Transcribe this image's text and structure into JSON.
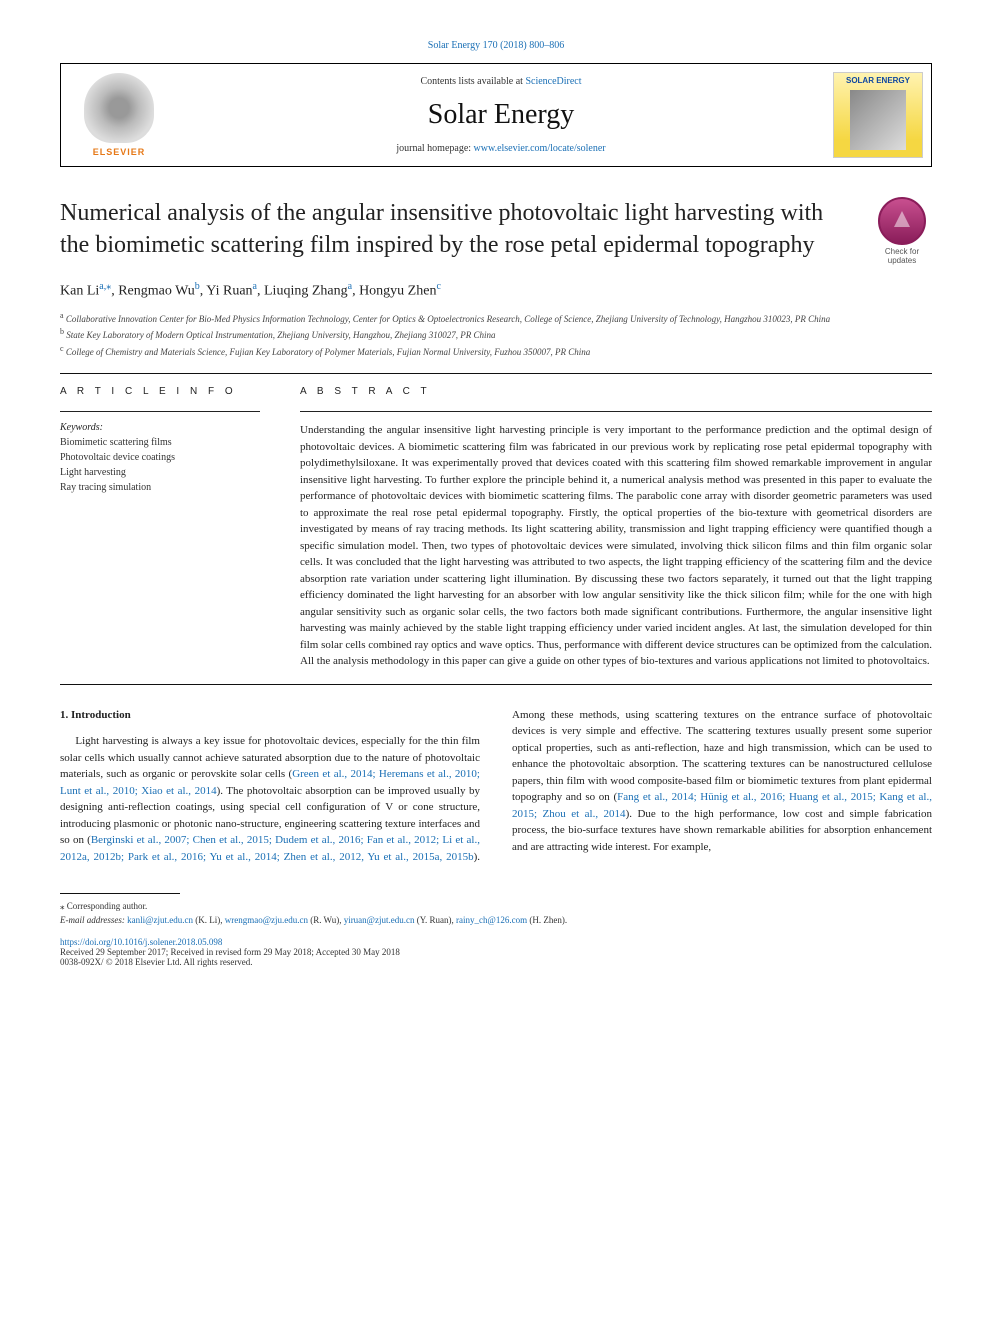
{
  "citation_top": "Solar Energy 170 (2018) 800–806",
  "header": {
    "contents_prefix": "Contents lists available at ",
    "contents_link": "ScienceDirect",
    "journal_name": "Solar Energy",
    "homepage_prefix": "journal homepage: ",
    "homepage_url": "www.elsevier.com/locate/solener",
    "publisher": "ELSEVIER",
    "cover_title": "SOLAR ENERGY"
  },
  "article": {
    "title": "Numerical analysis of the angular insensitive photovoltaic light harvesting with the biomimetic scattering film inspired by the rose petal epidermal topography",
    "check_updates": "Check for updates",
    "authors_html": "Kan Li<sup class='sup'>a,</sup><sup class='sup'>⁎</sup>, Rengmao Wu<sup class='sup'>b</sup>, Yi Ruan<sup class='sup'>a</sup>, Liuqing Zhang<sup class='sup'>a</sup>, Hongyu Zhen<sup class='sup'>c</sup>",
    "affiliations": [
      {
        "sup": "a",
        "text": "Collaborative Innovation Center for Bio-Med Physics Information Technology, Center for Optics & Optoelectronics Research, College of Science, Zhejiang University of Technology, Hangzhou 310023, PR China"
      },
      {
        "sup": "b",
        "text": "State Key Laboratory of Modern Optical Instrumentation, Zhejiang University, Hangzhou, Zhejiang 310027, PR China"
      },
      {
        "sup": "c",
        "text": "College of Chemistry and Materials Science, Fujian Key Laboratory of Polymer Materials, Fujian Normal University, Fuzhou 350007, PR China"
      }
    ]
  },
  "info": {
    "heading": "A R T I C L E   I N F O",
    "kw_label": "Keywords:",
    "keywords": [
      "Biomimetic scattering films",
      "Photovoltaic device coatings",
      "Light harvesting",
      "Ray tracing simulation"
    ]
  },
  "abstract": {
    "heading": "A B S T R A C T",
    "text": "Understanding the angular insensitive light harvesting principle is very important to the performance prediction and the optimal design of photovoltaic devices. A biomimetic scattering film was fabricated in our previous work by replicating rose petal epidermal topography with polydimethylsiloxane. It was experimentally proved that devices coated with this scattering film showed remarkable improvement in angular insensitive light harvesting. To further explore the principle behind it, a numerical analysis method was presented in this paper to evaluate the performance of photovoltaic devices with biomimetic scattering films. The parabolic cone array with disorder geometric parameters was used to approximate the real rose petal epidermal topography. Firstly, the optical properties of the bio-texture with geometrical disorders are investigated by means of ray tracing methods. Its light scattering ability, transmission and light trapping efficiency were quantified though a specific simulation model. Then, two types of photovoltaic devices were simulated, involving thick silicon films and thin film organic solar cells. It was concluded that the light harvesting was attributed to two aspects, the light trapping efficiency of the scattering film and the device absorption rate variation under scattering light illumination. By discussing these two factors separately, it turned out that the light trapping efficiency dominated the light harvesting for an absorber with low angular sensitivity like the thick silicon film; while for the one with high angular sensitivity such as organic solar cells, the two factors both made significant contributions. Furthermore, the angular insensitive light harvesting was mainly achieved by the stable light trapping efficiency under varied incident angles. At last, the simulation developed for thin film solar cells combined ray optics and wave optics. Thus, performance with different device structures can be optimized from the calculation. All the analysis methodology in this paper can give a guide on other types of bio-textures and various applications not limited to photovoltaics."
  },
  "body": {
    "section_heading": "1. Introduction",
    "para1_pre": "Light harvesting is always a key issue for photovoltaic devices, especially for the thin film solar cells which usually cannot achieve saturated absorption due to the nature of photovoltaic materials, such as organic or perovskite solar cells (",
    "para1_cite1": "Green et al., 2014; Heremans et al., 2010; Lunt et al., 2010; Xiao et al., 2014",
    "para1_mid": "). The photovoltaic absorption can be improved usually by designing anti-reflection coatings, using special cell configuration of V or cone structure, introducing plasmonic or photonic nano-structure, engineering scattering texture interfaces and so on (",
    "para1_cite2": "Berginski et al., 2007; Chen et al., 2015; Dudem et al., 2016; Fan et al., 2012; Li et al., 2012a, 2012b; Park et al., 2016; Yu et al., 2014; Zhen et al., 2012, Yu et al., 2015a, 2015b",
    "para1_post": "). Among these methods, using scattering textures on the entrance surface of photovoltaic devices is very simple and effective. The scattering textures usually present some superior optical properties, such as anti-reflection, haze and high transmission, which can be used to enhance the photovoltaic absorption. The scattering textures can be nanostructured cellulose papers, thin film with wood composite-based film or biomimetic textures from plant epidermal topography and so on (",
    "para1_cite3": "Fang et al., 2014; Hünig et al., 2016; Huang et al., 2015; Kang et al., 2015; Zhou et al., 2014",
    "para1_end": "). Due to the high performance, low cost and simple fabrication process, the bio-surface textures have shown remarkable abilities for absorption enhancement and are attracting wide interest. For example,"
  },
  "footer": {
    "corr": "⁎ Corresponding author.",
    "email_label": "E-mail addresses: ",
    "emails": [
      {
        "addr": "kanli@zjut.edu.cn",
        "who": " (K. Li), "
      },
      {
        "addr": "wrengmao@zju.edu.cn",
        "who": " (R. Wu), "
      },
      {
        "addr": "yiruan@zjut.edu.cn",
        "who": " (Y. Ruan), "
      },
      {
        "addr": "rainy_ch@126.com",
        "who": " (H. Zhen)."
      }
    ],
    "doi": "https://doi.org/10.1016/j.solener.2018.05.098",
    "received": "Received 29 September 2017; Received in revised form 29 May 2018; Accepted 30 May 2018",
    "copyright": "0038-092X/ © 2018 Elsevier Ltd. All rights reserved."
  },
  "colors": {
    "link": "#1a6fb5",
    "publisher": "#e67817"
  }
}
